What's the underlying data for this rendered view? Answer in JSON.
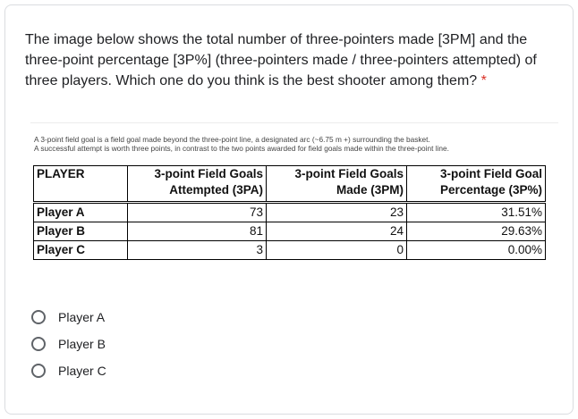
{
  "question": {
    "text": "The image below shows the total number of three-pointers made [3PM] and the three-point percentage [3P%] (three-pointers made / three-pointers attempted) of three players. Which one do you think is the best shooter among them?",
    "required_marker": "*"
  },
  "figure": {
    "note_line1": "A 3-point field goal is a field goal made beyond the three-point line, a designated arc (~6.75 m +)  surrounding the basket.",
    "note_line2": "A successful attempt is worth three points, in contrast to the two points awarded for field goals made within the three-point line.",
    "table": {
      "headers": [
        {
          "line1": "PLAYER",
          "line2": ""
        },
        {
          "line1": "3-point Field Goals",
          "line2": "Attempted (3PA)"
        },
        {
          "line1": "3-point Field Goals",
          "line2": "Made (3PM)"
        },
        {
          "line1": "3-point Field Goal",
          "line2": "Percentage (3P%)"
        }
      ],
      "rows": [
        {
          "player": "Player A",
          "attempted": "73",
          "made": "23",
          "percentage": "31.51%"
        },
        {
          "player": "Player B",
          "attempted": "81",
          "made": "24",
          "percentage": "29.63%"
        },
        {
          "player": "Player C",
          "attempted": "3",
          "made": "0",
          "percentage": "0.00%"
        }
      ]
    }
  },
  "options": [
    {
      "label": "Player A",
      "selected": false
    },
    {
      "label": "Player B",
      "selected": false
    },
    {
      "label": "Player C",
      "selected": false
    }
  ],
  "colors": {
    "required": "#d93025",
    "text": "#202124",
    "radio_border": "#5f6368",
    "card_border": "#dadce0"
  }
}
